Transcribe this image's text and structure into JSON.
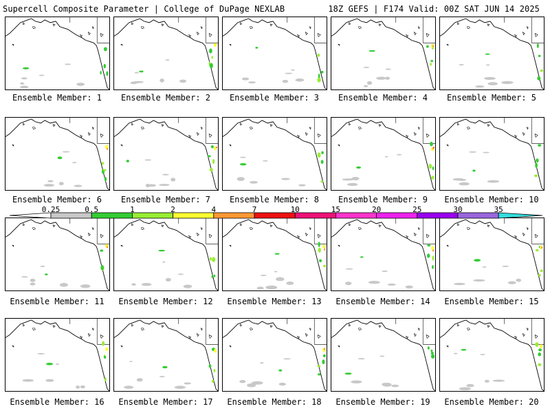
{
  "header": {
    "left": "Supercell Composite Parameter | College of DuPage NEXLAB",
    "right": "18Z GEFS | F174 Valid: 00Z SAT JUN 14 2025"
  },
  "members": [
    "Ensemble Member: 1",
    "Ensemble Member: 2",
    "Ensemble Member: 3",
    "Ensemble Member: 4",
    "Ensemble Member: 5",
    "Ensemble Member: 6",
    "Ensemble Member: 7",
    "Ensemble Member: 8",
    "Ensemble Member: 9",
    "Ensemble Member: 10",
    "Ensemble Member: 11",
    "Ensemble Member: 12",
    "Ensemble Member: 13",
    "Ensemble Member: 14",
    "Ensemble Member: 15",
    "Ensemble Member: 16",
    "Ensemble Member: 17",
    "Ensemble Member: 18",
    "Ensemble Member: 19",
    "Ensemble Member: 20"
  ],
  "colorbar": {
    "labels": [
      "0.25",
      "0.5",
      "1",
      "2",
      "4",
      "7",
      "10",
      "15",
      "20",
      "25",
      "30",
      "35"
    ],
    "colors": [
      "#ffffff",
      "#c8c8c8",
      "#33cc33",
      "#99ee33",
      "#ffff33",
      "#ff9933",
      "#ee1111",
      "#ee1177",
      "#ff33cc",
      "#ee22ee",
      "#9900ee",
      "#9966dd",
      "#33dddd"
    ]
  },
  "legend_colors": {
    "low": "#c8c8c8",
    "green": "#33cc33",
    "light_green": "#99ee33",
    "yellow": "#ffff33",
    "orange": "#ff9933",
    "red": "#ee1111"
  }
}
